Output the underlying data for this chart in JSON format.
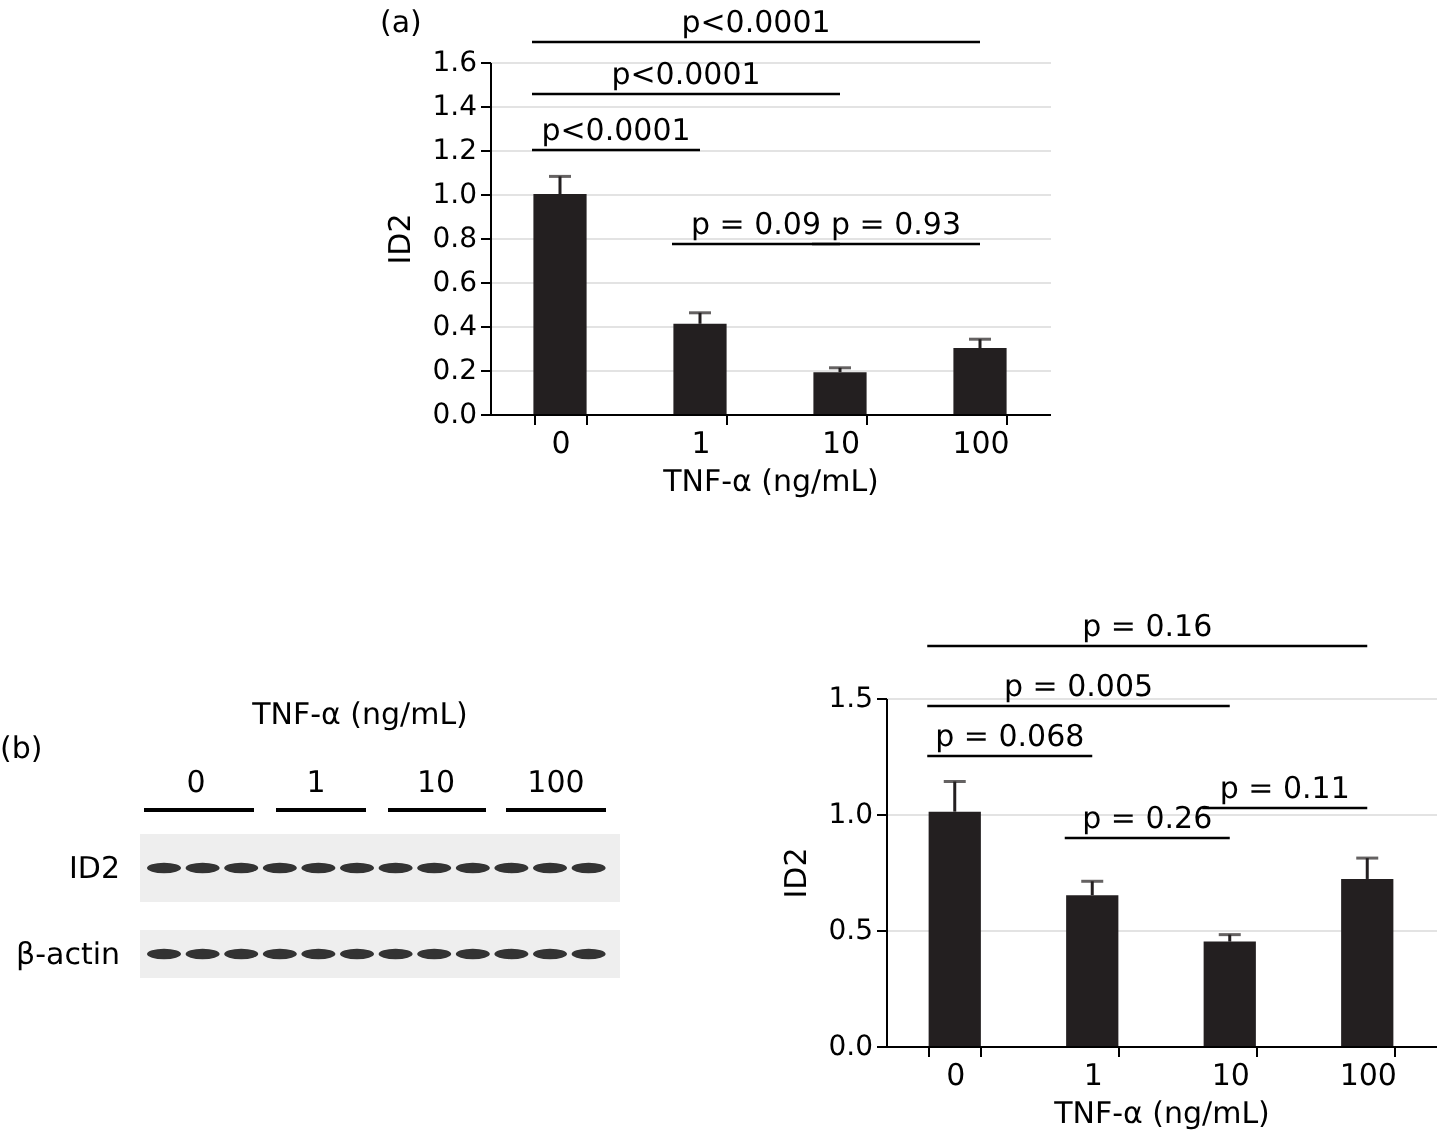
{
  "chart_data": [
    {
      "type": "bar",
      "annotations": [
        "(a)",
        "p<0.0001",
        "p<0.0001",
        "p<0.0001",
        "p = 0.09",
        "p = 0.93"
      ],
      "categories": [
        "0",
        "1",
        "10",
        "100"
      ],
      "values": [
        1.0,
        0.41,
        0.19,
        0.3
      ],
      "errors": [
        [
          1.0,
          1.08
        ],
        [
          0.41,
          0.46
        ],
        [
          0.19,
          0.21
        ],
        [
          0.3,
          0.34
        ]
      ],
      "color": "#231f20",
      "xlabel": "TNF-α (ng/mL)",
      "ylabel": "ID2",
      "ylim": [
        0,
        1.6
      ],
      "yticks": [
        {
          "value": 0,
          "label": "0.0"
        },
        {
          "value": 0.2,
          "label": "0.2"
        },
        {
          "value": 0.4,
          "label": "0.4"
        },
        {
          "value": 0.6,
          "label": "0.6"
        },
        {
          "value": 0.8,
          "label": "0.8"
        },
        {
          "value": 1,
          "label": "1.0"
        },
        {
          "value": 1.2,
          "label": "1.2"
        },
        {
          "value": 1.4,
          "label": "1.4"
        },
        {
          "value": 1.6,
          "label": "1.6"
        }
      ],
      "grid": "y"
    },
    {
      "type": "other",
      "annotations": [
        "(b)",
        "TNF-α (ng/mL)",
        "0",
        "1",
        "10",
        "100",
        "ID2",
        "β-actin"
      ]
    },
    {
      "type": "bar",
      "annotations": [
        "p = 0.068",
        "p = 0.005",
        "p = 0.16",
        "p = 0.26",
        "p = 0.11"
      ],
      "categories": [
        "0",
        "1",
        "10",
        "100"
      ],
      "values": [
        1.01,
        0.65,
        0.45,
        0.72
      ],
      "errors": [
        [
          1.01,
          1.14
        ],
        [
          0.65,
          0.71
        ],
        [
          0.45,
          0.48
        ],
        [
          0.72,
          0.81
        ]
      ],
      "color": "#231f20",
      "xlabel": "TNF-α (ng/mL)",
      "ylabel": "ID2",
      "ylim": [
        0,
        1.5
      ],
      "yticks": [
        {
          "value": 0,
          "label": "0.0"
        },
        {
          "value": 0.5,
          "label": "0.5"
        },
        {
          "value": 1,
          "label": "1.0"
        },
        {
          "value": 1.5,
          "label": "1.5"
        }
      ],
      "grid": "y"
    }
  ]
}
